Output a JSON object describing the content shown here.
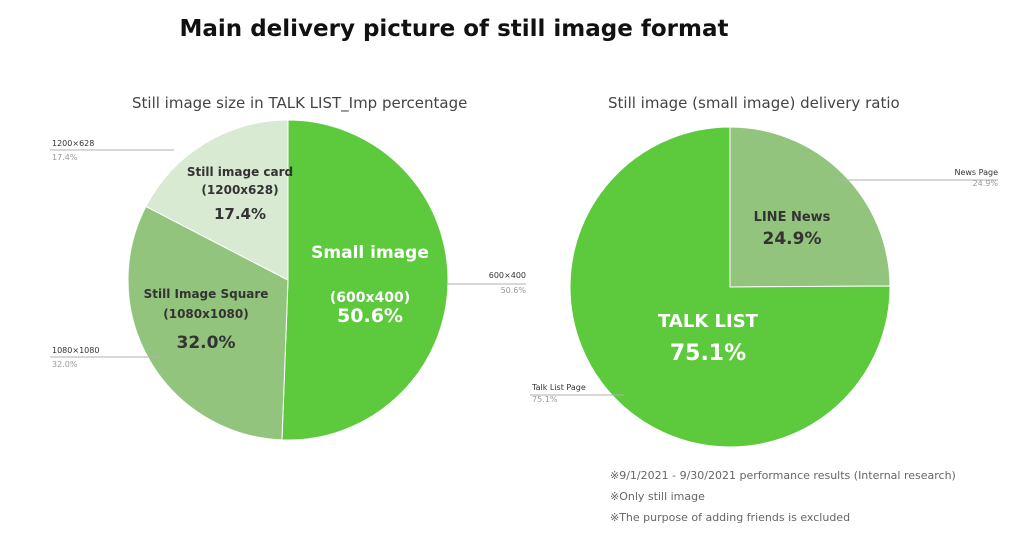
{
  "title": "Main delivery picture of still image format",
  "chart_data": [
    {
      "type": "pie",
      "title": "Still image size in TALK LIST_Imp percentage",
      "slices": [
        {
          "name": "Small image",
          "size": "(600x400)",
          "value": 50.6,
          "value_label": "50.6%",
          "callout": "600×400",
          "callout_value": "50.6%",
          "color": "#5dc93d",
          "label_color": "#ffffff"
        },
        {
          "name": "Still Image Square",
          "size": "(1080x1080)",
          "value": 32.0,
          "value_label": "32.0%",
          "callout": "1080×1080",
          "callout_value": "32.0%",
          "color": "#93c47d",
          "label_color": "#333333"
        },
        {
          "name": "Still image card",
          "size": "(1200x628)",
          "value": 17.4,
          "value_label": "17.4%",
          "callout": "1200×628",
          "callout_value": "17.4%",
          "color": "#d9ead3",
          "label_color": "#333333"
        }
      ]
    },
    {
      "type": "pie",
      "title": "Still image (small image) delivery ratio",
      "slices": [
        {
          "name": "LINE News",
          "value": 24.9,
          "value_label": "24.9%",
          "callout": "News Page",
          "callout_value": "24.9%",
          "color": "#93c47d",
          "label_color": "#333333"
        },
        {
          "name": "TALK LIST",
          "value": 75.1,
          "value_label": "75.1%",
          "callout": "Talk List Page",
          "callout_value": "75.1%",
          "color": "#5dc93d",
          "label_color": "#ffffff"
        }
      ]
    }
  ],
  "notes": [
    "※9/1/2021 - 9/30/2021 performance results (Internal research)",
    "※Only still image",
    "※The purpose of adding friends is excluded"
  ]
}
